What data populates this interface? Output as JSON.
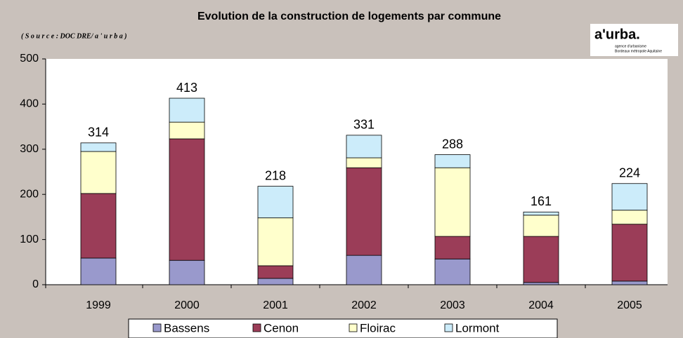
{
  "chart_data": {
    "type": "stacked_bar",
    "title": "Evolution de la construction de logements par commune",
    "subtitle": "( S o u r c e  : DOC DRE/ a ' u r b a )",
    "logo": {
      "name": "a'urba.",
      "line1": "agence d'urbanisme",
      "line2": "Bordeaux métropole Aquitaine"
    },
    "categories": [
      "1999",
      "2000",
      "2001",
      "2002",
      "2003",
      "2004",
      "2005"
    ],
    "series": [
      {
        "name": "Bassens",
        "color": "#9999cc",
        "values": [
          59,
          54,
          14,
          65,
          57,
          5,
          8
        ]
      },
      {
        "name": "Cenon",
        "color": "#9b3d58",
        "values": [
          143,
          269,
          28,
          194,
          50,
          102,
          126
        ]
      },
      {
        "name": "Floirac",
        "color": "#ffffcc",
        "values": [
          93,
          37,
          106,
          22,
          152,
          47,
          31
        ]
      },
      {
        "name": "Lormont",
        "color": "#ccecfa",
        "values": [
          19,
          53,
          70,
          50,
          29,
          7,
          59
        ]
      }
    ],
    "totals": [
      314,
      413,
      218,
      331,
      288,
      161,
      224
    ],
    "ylim": [
      0,
      500
    ],
    "yticks": [
      0,
      100,
      200,
      300,
      400,
      500
    ],
    "grid": false
  }
}
